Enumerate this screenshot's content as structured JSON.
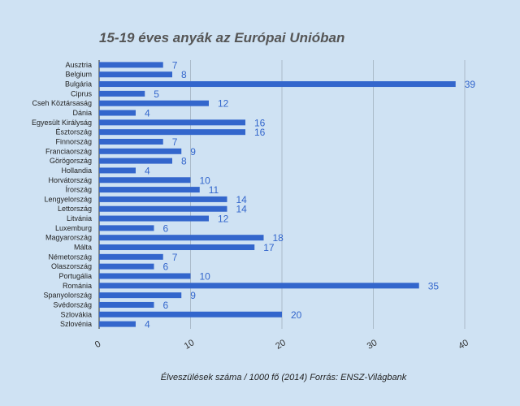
{
  "chart_data": {
    "type": "bar",
    "orientation": "horizontal",
    "title": "15-19 éves anyák az Európai Unióban",
    "xlabel": "Élveszülések száma / 1000 fő (2014) Forrás: ENSZ-Világbank",
    "ylabel": "",
    "categories": [
      "Ausztria",
      "Belgium",
      "Bulgária",
      "Ciprus",
      "Cseh Köztársaság",
      "Dánia",
      "Egyesült Királyság",
      "Észtország",
      "Finnország",
      "Franciaország",
      "Görögország",
      "Hollandia",
      "Horvátország",
      "Írország",
      "Lengyelország",
      "Lettország",
      "Litvánia",
      "Luxemburg",
      "Magyarország",
      "Málta",
      "Németország",
      "Olaszország",
      "Portugália",
      "Románia",
      "Spanyolország",
      "Svédország",
      "Szlovákia",
      "Szlovénia"
    ],
    "values": [
      7,
      8,
      39,
      5,
      12,
      4,
      16,
      16,
      7,
      9,
      8,
      4,
      10,
      11,
      14,
      14,
      12,
      6,
      18,
      17,
      7,
      6,
      10,
      35,
      9,
      6,
      20,
      4
    ],
    "xlim": [
      0,
      40
    ],
    "xticks": [
      0,
      10,
      20,
      30,
      40
    ],
    "grid": true,
    "legend": "none",
    "bar_color": "#3366cc",
    "value_label_color": "#3366cc",
    "grid_color": "#000000"
  }
}
